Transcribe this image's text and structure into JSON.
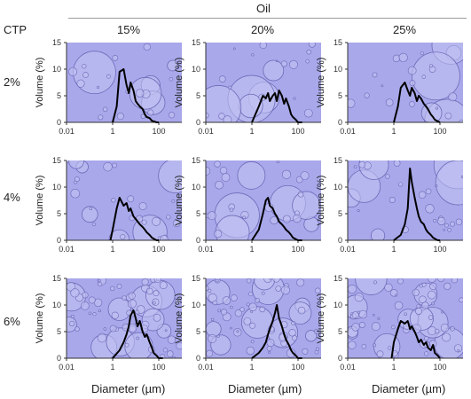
{
  "figure": {
    "oil_header": "Oil",
    "ctp_header": "CTP",
    "col_labels": [
      "15%",
      "20%",
      "25%"
    ],
    "row_labels": [
      "2%",
      "4%",
      "6%"
    ],
    "ylabel": "Volume (%)",
    "xlabel": "Diameter (µm)"
  },
  "colors": {
    "micrograph_bg": "#a9a8eb",
    "droplet_fill": "#c3c2f2",
    "droplet_edge": "#6c6ab8",
    "curve": "#000000",
    "axis": "#333333"
  },
  "chart_data": [
    {
      "type": "line",
      "row": "2%",
      "col": "15%",
      "x_scale": "log",
      "xlim": [
        0.01,
        1000
      ],
      "xticks": [
        0.01,
        1,
        100
      ],
      "ylim": [
        0,
        15
      ],
      "yticks": [
        0,
        5,
        10,
        15
      ],
      "series": [
        {
          "x": [
            1,
            1.5,
            2,
            3,
            4,
            5,
            6,
            8,
            10,
            12,
            15,
            20,
            25,
            30,
            40,
            50,
            60,
            80,
            100
          ],
          "y": [
            0,
            3,
            9.5,
            10,
            7,
            5.5,
            7.5,
            6,
            4,
            3.5,
            3,
            2.5,
            1.5,
            1,
            0.8,
            0.3,
            0.2,
            0,
            0
          ]
        }
      ]
    },
    {
      "type": "line",
      "row": "2%",
      "col": "20%",
      "x_scale": "log",
      "xlim": [
        0.01,
        1000
      ],
      "xticks": [
        0.01,
        1,
        100
      ],
      "ylim": [
        0,
        15
      ],
      "yticks": [
        0,
        5,
        10,
        15
      ],
      "series": [
        {
          "x": [
            1,
            2,
            3,
            4,
            5,
            6,
            8,
            10,
            12,
            15,
            20,
            25,
            30,
            40,
            50,
            60,
            80,
            100,
            150
          ],
          "y": [
            0,
            3,
            5,
            4.5,
            5.5,
            4,
            5,
            5.5,
            4,
            6,
            5,
            3.5,
            4.5,
            3,
            1.5,
            1,
            0.5,
            0,
            0
          ]
        }
      ]
    },
    {
      "type": "line",
      "row": "2%",
      "col": "25%",
      "x_scale": "log",
      "xlim": [
        0.01,
        1000
      ],
      "xticks": [
        0.01,
        1,
        100
      ],
      "ylim": [
        0,
        15
      ],
      "yticks": [
        0,
        5,
        10,
        15
      ],
      "series": [
        {
          "x": [
            1,
            1.5,
            2,
            3,
            4,
            5,
            6,
            8,
            10,
            12,
            15,
            20,
            25,
            30,
            40,
            50,
            60,
            80,
            100
          ],
          "y": [
            0,
            3,
            6.5,
            7.5,
            6,
            5,
            6.5,
            5.5,
            4,
            5,
            4.5,
            3.5,
            3,
            2.5,
            1.5,
            1,
            0.5,
            0.2,
            0
          ]
        }
      ]
    },
    {
      "type": "line",
      "row": "4%",
      "col": "15%",
      "x_scale": "log",
      "xlim": [
        0.01,
        1000
      ],
      "xticks": [
        0.01,
        1,
        100
      ],
      "ylim": [
        0,
        15
      ],
      "yticks": [
        0,
        5,
        10,
        15
      ],
      "series": [
        {
          "x": [
            0.8,
            1,
            1.5,
            2,
            3,
            4,
            5,
            6,
            8,
            10,
            15,
            20,
            25,
            30,
            40,
            50,
            60,
            80,
            100
          ],
          "y": [
            0,
            2,
            6,
            8,
            6.5,
            7,
            5.5,
            6,
            4.5,
            4,
            3,
            2.5,
            2,
            1.5,
            1,
            0.5,
            0.3,
            0,
            0
          ]
        }
      ]
    },
    {
      "type": "line",
      "row": "4%",
      "col": "20%",
      "x_scale": "log",
      "xlim": [
        0.01,
        1000
      ],
      "xticks": [
        0.01,
        1,
        100
      ],
      "ylim": [
        0,
        15
      ],
      "yticks": [
        0,
        5,
        10,
        15
      ],
      "series": [
        {
          "x": [
            1,
            2,
            3,
            4,
            5,
            6,
            8,
            10,
            12,
            15,
            20,
            25,
            30,
            40,
            50,
            60,
            80,
            100,
            150
          ],
          "y": [
            0,
            2,
            5,
            7.5,
            8,
            6.5,
            6,
            5,
            4.5,
            3.5,
            3,
            2.5,
            2,
            1.5,
            1,
            0.5,
            0.2,
            0,
            0
          ]
        }
      ]
    },
    {
      "type": "line",
      "row": "4%",
      "col": "25%",
      "x_scale": "log",
      "xlim": [
        0.01,
        1000
      ],
      "xticks": [
        0.01,
        1,
        100
      ],
      "ylim": [
        0,
        15
      ],
      "yticks": [
        0,
        5,
        10,
        15
      ],
      "series": [
        {
          "x": [
            1,
            2,
            3,
            4,
            5,
            6,
            8,
            10,
            12,
            15,
            20,
            25,
            30,
            40,
            50,
            60,
            80,
            100
          ],
          "y": [
            0,
            1,
            3,
            6,
            13.5,
            11,
            8,
            6,
            4.5,
            3.5,
            3,
            2,
            1.5,
            1,
            0.5,
            0.3,
            0,
            0
          ]
        }
      ]
    },
    {
      "type": "line",
      "row": "6%",
      "col": "15%",
      "x_scale": "log",
      "xlim": [
        0.01,
        1000
      ],
      "xticks": [
        0.01,
        1,
        100
      ],
      "ylim": [
        0,
        15
      ],
      "yticks": [
        0,
        5,
        10,
        15
      ],
      "series": [
        {
          "x": [
            1,
            2,
            3,
            4,
            5,
            6,
            8,
            10,
            12,
            15,
            20,
            25,
            30,
            40,
            50,
            60,
            80,
            100,
            150
          ],
          "y": [
            0,
            1.5,
            3,
            4.5,
            6,
            8,
            9,
            7.5,
            6,
            7,
            5,
            4,
            4.5,
            3,
            2,
            1,
            0.5,
            0,
            0
          ]
        }
      ]
    },
    {
      "type": "line",
      "row": "6%",
      "col": "20%",
      "x_scale": "log",
      "xlim": [
        0.01,
        1000
      ],
      "xticks": [
        0.01,
        1,
        100
      ],
      "ylim": [
        0,
        15
      ],
      "yticks": [
        0,
        5,
        10,
        15
      ],
      "series": [
        {
          "x": [
            1,
            2,
            3,
            4,
            5,
            6,
            8,
            10,
            12,
            15,
            20,
            25,
            30,
            40,
            50,
            60,
            80,
            100,
            150
          ],
          "y": [
            0,
            1,
            2,
            3,
            4.5,
            5.5,
            7,
            8.5,
            10,
            7.5,
            6,
            4.5,
            3.5,
            2.5,
            1.5,
            1,
            0.5,
            0,
            0
          ]
        }
      ]
    },
    {
      "type": "line",
      "row": "6%",
      "col": "25%",
      "x_scale": "log",
      "xlim": [
        0.01,
        1000
      ],
      "xticks": [
        0.01,
        1,
        100
      ],
      "ylim": [
        0,
        15
      ],
      "yticks": [
        0,
        5,
        10,
        15
      ],
      "series": [
        {
          "x": [
            0.8,
            1,
            1.5,
            2,
            3,
            4,
            5,
            6,
            8,
            10,
            12,
            15,
            20,
            25,
            30,
            40,
            50,
            60,
            80,
            100
          ],
          "y": [
            0,
            3,
            5.5,
            7,
            6.5,
            7,
            5.5,
            6,
            5,
            4,
            3,
            3.5,
            2.5,
            3,
            2,
            1.5,
            2.5,
            1,
            0.5,
            0
          ]
        }
      ]
    }
  ]
}
